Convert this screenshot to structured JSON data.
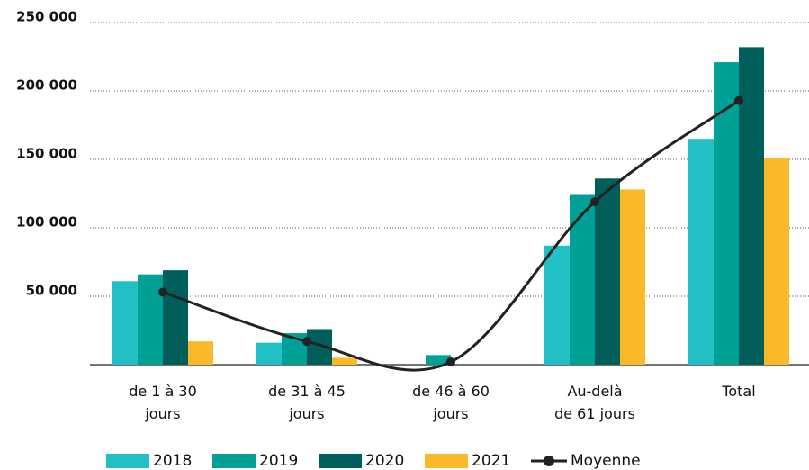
{
  "chart_data": {
    "type": "bar",
    "categories": [
      "de 1 à 30\njours",
      "de 31 à 45\njours",
      "de 46 à 60\njours",
      "Au-delà\nde 61 jours",
      "Total"
    ],
    "series": [
      {
        "name": "2018",
        "color": "#22bfc4",
        "values": [
          61000,
          16000,
          0,
          87000,
          165000
        ]
      },
      {
        "name": "2019",
        "color": "#00a096",
        "values": [
          66000,
          23000,
          7000,
          124000,
          221000
        ]
      },
      {
        "name": "2020",
        "color": "#005f5a",
        "values": [
          69000,
          26000,
          0,
          136000,
          232000
        ]
      },
      {
        "name": "2021",
        "color": "#fbb829",
        "values": [
          17000,
          5000,
          0,
          128000,
          151000
        ]
      },
      {
        "name": "Moyenne",
        "type": "line",
        "color": "#222222",
        "values": [
          53000,
          17000,
          2000,
          119000,
          193000
        ]
      }
    ],
    "ylim": [
      0,
      250000
    ],
    "yticks": [
      {
        "value": 50000,
        "label": "50 000"
      },
      {
        "value": 100000,
        "label": "100 000"
      },
      {
        "value": 150000,
        "label": "150 000"
      },
      {
        "value": 200000,
        "label": "200 000"
      },
      {
        "value": 250000,
        "label": "250 000"
      }
    ],
    "grid": true,
    "legend": "bottom"
  }
}
